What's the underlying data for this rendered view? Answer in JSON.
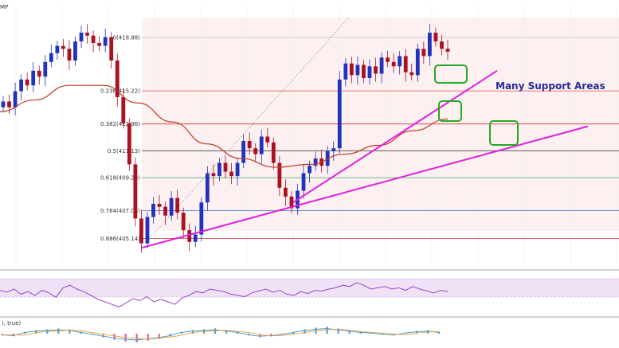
{
  "chart_data": {
    "type": "candlestick",
    "symbol_fragment": "MP",
    "indicator_fragment": "), true)",
    "annotation": "Many Support Areas",
    "price_range": [
      403.2,
      421.0
    ],
    "fib_levels": [
      {
        "ratio": "0",
        "price": "418.88",
        "color": "#c8c8c8"
      },
      {
        "ratio": "0.236",
        "price": "415.22",
        "color": "#e06666"
      },
      {
        "ratio": "0.382",
        "price": "412.96",
        "color": "#cc3333"
      },
      {
        "ratio": "0.5",
        "price": "411.13",
        "color": "#444444"
      },
      {
        "ratio": "0.618",
        "price": "409.29",
        "color": "#33aa66"
      },
      {
        "ratio": "0.764",
        "price": "407.03",
        "color": "#3366cc"
      },
      {
        "ratio": "0.886",
        "price": "405.14",
        "color": "#cc3333"
      }
    ],
    "candle_closes": [
      414.5,
      414.1,
      415.2,
      416.0,
      415.6,
      416.6,
      416.2,
      417.2,
      417.8,
      418.3,
      418.1,
      417.3,
      418.6,
      419.2,
      419.0,
      418.5,
      418.3,
      418.9,
      417.3,
      414.8,
      413.0,
      410.2,
      406.5,
      404.8,
      406.6,
      407.5,
      407.3,
      406.7,
      407.9,
      406.9,
      405.7,
      404.9,
      405.4,
      407.6,
      409.6,
      409.4,
      410.3,
      409.7,
      409.4,
      410.3,
      411.8,
      411.3,
      410.9,
      412.1,
      411.7,
      410.3,
      408.6,
      408.0,
      407.2,
      408.4,
      409.6,
      410.1,
      410.6,
      410.1,
      411.1,
      411.3,
      416.0,
      417.1,
      416.3,
      417.0,
      416.1,
      416.9,
      416.4,
      417.5,
      417.2,
      416.9,
      417.6,
      416.5,
      416.3,
      418.1,
      417.6,
      419.2,
      418.6,
      418.1,
      417.9
    ],
    "moving_average": [
      413.8,
      414.6,
      415.6,
      415.6,
      414.4,
      413.1,
      411.6,
      410.6,
      410.0,
      410.2,
      410.9,
      411.5,
      412.5,
      413.3
    ],
    "trendlines": [
      {
        "name": "lower-trendline",
        "from": 404.5,
        "to": 412.8
      },
      {
        "name": "upper-trendline",
        "from": 407.6,
        "to": 416.6
      }
    ],
    "support_boxes": 3,
    "rsi_values": [
      58,
      55,
      60,
      52,
      56,
      50,
      58,
      54,
      47,
      62,
      66,
      60,
      56,
      50,
      44,
      40,
      36,
      32,
      38,
      45,
      42,
      48,
      40,
      44,
      40,
      36,
      46,
      50,
      56,
      54,
      60,
      58,
      56,
      52,
      50,
      48,
      54,
      57,
      60,
      55,
      58,
      52,
      50,
      56,
      53,
      58,
      57,
      60,
      62,
      66,
      64,
      70,
      66,
      60,
      62,
      64,
      60,
      62,
      58,
      64,
      60,
      57,
      54,
      58,
      56
    ],
    "macd_histogram": [
      -0.2,
      -0.3,
      0.2,
      0.4,
      0.5,
      0.6,
      0.5,
      0.2,
      -0.1,
      -0.4,
      -0.7,
      -0.9,
      -1.0,
      -0.8,
      -0.6,
      -0.3,
      0.2,
      0.4,
      0.5,
      0.6,
      0.4,
      0.2,
      -0.2,
      -0.4,
      -0.3,
      -0.1,
      0.2,
      0.5,
      0.7,
      0.8,
      0.6,
      0.4,
      0.2,
      0.1,
      -0.1,
      -0.2,
      0.1,
      0.3,
      0.4,
      0.2
    ],
    "colors": {
      "bull": "#2233bb",
      "bear": "#aa1122",
      "ma": "#c0392b",
      "trendline": "#dd22dd",
      "box": "#22aa22",
      "rsi": "#9944cc",
      "rsi_band": "#e9d6f4",
      "zone": "#fdf0f0"
    }
  }
}
